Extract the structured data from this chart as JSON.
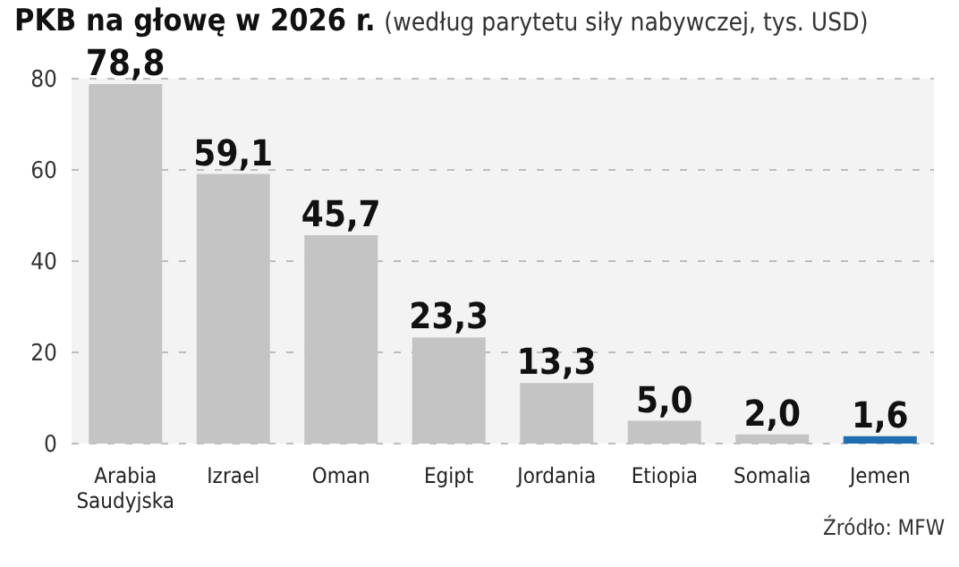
{
  "chart_data": {
    "type": "bar",
    "title": "PKB na głowę w 2026 r.",
    "subtitle": "(według parytetu siły nabywczej, tys. USD)",
    "categories": [
      "Arabia Saudyjska",
      "Izrael",
      "Oman",
      "Egipt",
      "Jordania",
      "Etiopia",
      "Somalia",
      "Jemen"
    ],
    "values": [
      78.8,
      59.1,
      45.7,
      23.3,
      13.3,
      5.0,
      2.0,
      1.6
    ],
    "colors": [
      "#c4c4c4",
      "#c4c4c4",
      "#c4c4c4",
      "#c4c4c4",
      "#c4c4c4",
      "#c4c4c4",
      "#c4c4c4",
      "#1f6fb0"
    ],
    "value_labels": [
      "78,8",
      "59,1",
      "45,7",
      "23,3",
      "13,3",
      "5,0",
      "2,0",
      "1,6"
    ],
    "ylim": [
      0,
      80
    ],
    "yticks": [
      0,
      20,
      40,
      60,
      80
    ],
    "grid": "y",
    "annotations": [
      "Źródło: MFW"
    ]
  }
}
